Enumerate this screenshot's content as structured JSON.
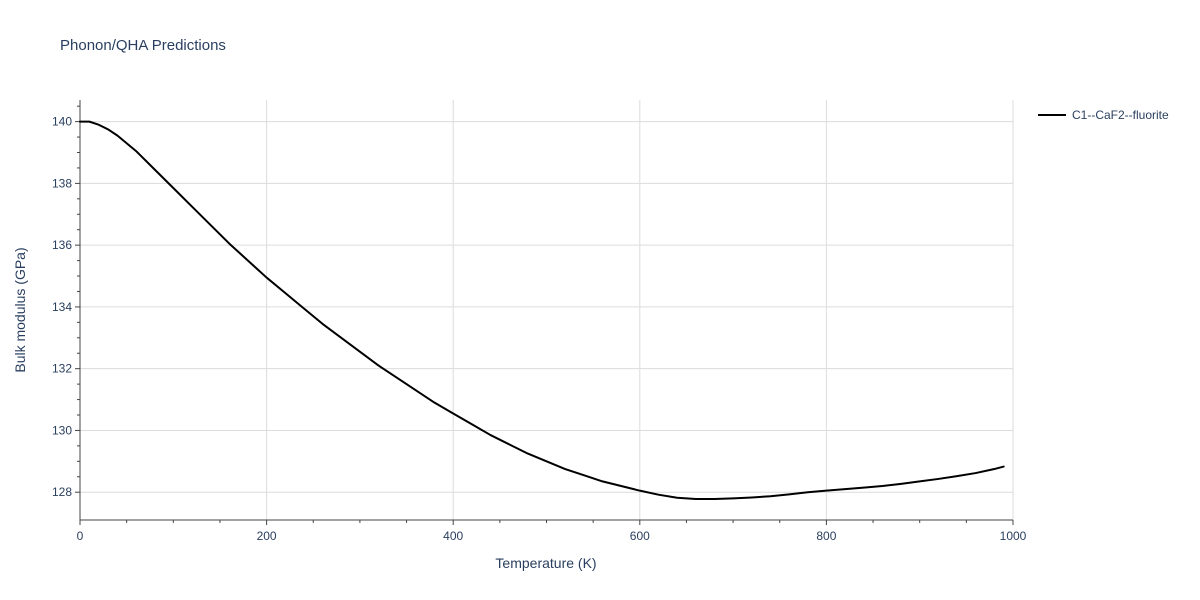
{
  "chart_data": {
    "type": "line",
    "title": "Phonon/QHA Predictions",
    "xlabel": "Temperature (K)",
    "ylabel": "Bulk modulus (GPa)",
    "xlim": [
      0,
      1000
    ],
    "ylim": [
      127.1,
      140.7
    ],
    "x_ticks": [
      0,
      200,
      400,
      600,
      800,
      1000
    ],
    "y_ticks": [
      128,
      130,
      132,
      134,
      136,
      138,
      140
    ],
    "x_tick_labels": [
      "0",
      "200",
      "400",
      "600",
      "800",
      "1000"
    ],
    "y_tick_labels": [
      "128",
      "130",
      "132",
      "134",
      "136",
      "138",
      "140"
    ],
    "grid": true,
    "legend_position": "top-right",
    "series": [
      {
        "name": "C1--CaF2--fluorite",
        "color": "#000000",
        "x": [
          0,
          10,
          20,
          30,
          40,
          50,
          60,
          80,
          100,
          120,
          140,
          160,
          180,
          200,
          220,
          240,
          260,
          280,
          300,
          320,
          340,
          360,
          380,
          400,
          420,
          440,
          460,
          480,
          500,
          520,
          540,
          560,
          580,
          600,
          620,
          640,
          660,
          680,
          700,
          720,
          740,
          760,
          780,
          800,
          820,
          840,
          860,
          880,
          900,
          920,
          940,
          960,
          980,
          990
        ],
        "y": [
          140.0,
          140.0,
          139.9,
          139.75,
          139.55,
          139.3,
          139.05,
          138.45,
          137.85,
          137.25,
          136.65,
          136.05,
          135.5,
          134.95,
          134.45,
          133.95,
          133.45,
          133.0,
          132.55,
          132.1,
          131.7,
          131.3,
          130.9,
          130.55,
          130.2,
          129.85,
          129.55,
          129.25,
          129.0,
          128.75,
          128.55,
          128.35,
          128.2,
          128.05,
          127.92,
          127.82,
          127.78,
          127.78,
          127.8,
          127.83,
          127.87,
          127.93,
          128.0,
          128.05,
          128.1,
          128.15,
          128.2,
          128.27,
          128.35,
          128.43,
          128.52,
          128.62,
          128.75,
          128.83
        ]
      }
    ]
  }
}
